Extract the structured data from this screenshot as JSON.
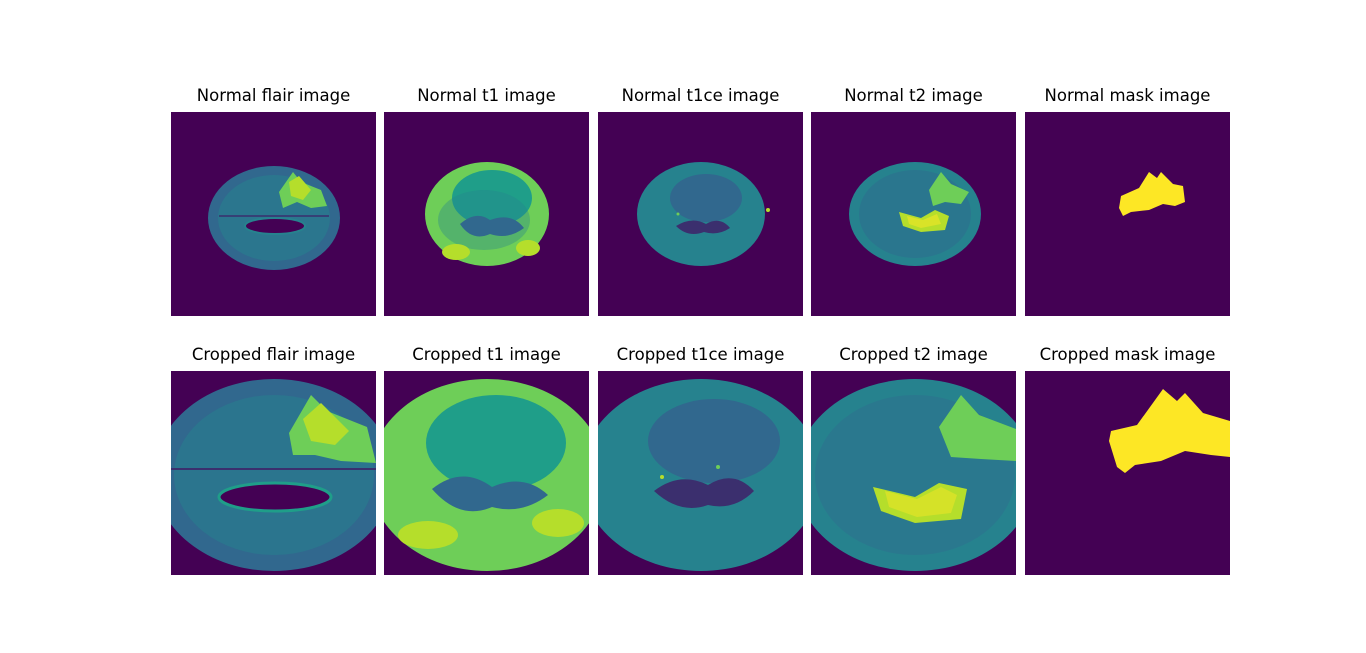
{
  "figure": {
    "colors": {
      "background": "#440154",
      "dark": "#3b2f6e",
      "low": "#31688e",
      "mid": "#26828e",
      "midhigh": "#1f9e89",
      "high": "#6ece58",
      "veryhigh": "#b5de2b",
      "yellow": "#fde725"
    },
    "rows": [
      {
        "panels": [
          {
            "title": "Normal flair image",
            "kind": "flair"
          },
          {
            "title": "Normal t1 image",
            "kind": "t1"
          },
          {
            "title": "Normal t1ce image",
            "kind": "t1ce"
          },
          {
            "title": "Normal t2 image",
            "kind": "t2"
          },
          {
            "title": "Normal mask image",
            "kind": "mask"
          }
        ]
      },
      {
        "panels": [
          {
            "title": "Cropped flair image",
            "kind": "flair"
          },
          {
            "title": "Cropped t1 image",
            "kind": "t1"
          },
          {
            "title": "Cropped t1ce image",
            "kind": "t1ce"
          },
          {
            "title": "Cropped t2 image",
            "kind": "t2"
          },
          {
            "title": "Cropped mask image",
            "kind": "mask"
          }
        ]
      }
    ]
  }
}
